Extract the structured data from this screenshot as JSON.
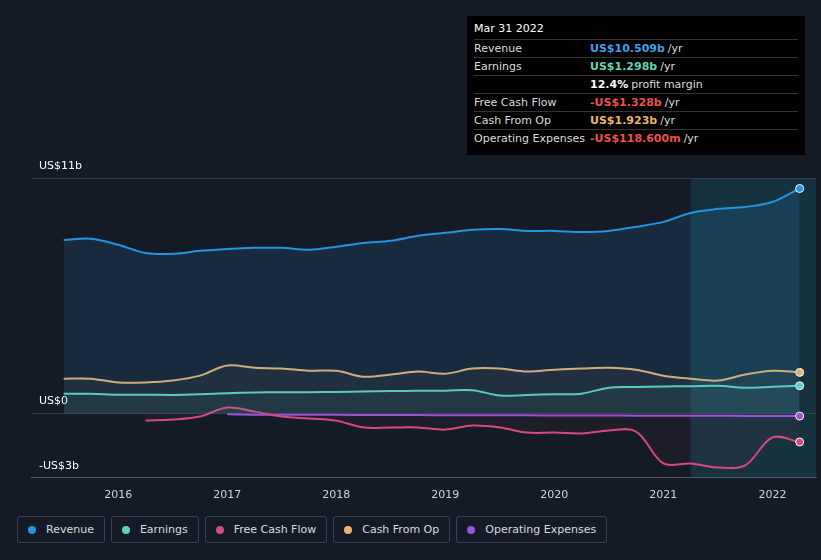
{
  "chart_data": {
    "type": "line",
    "x": [
      2015.5,
      2015.75,
      2016,
      2016.25,
      2016.5,
      2016.75,
      2017,
      2017.25,
      2017.5,
      2017.75,
      2018,
      2018.25,
      2018.5,
      2018.75,
      2019,
      2019.25,
      2019.5,
      2019.75,
      2020,
      2020.25,
      2020.5,
      2020.75,
      2021,
      2021.25,
      2021.5,
      2021.75,
      2022,
      2022.25
    ],
    "xlim": [
      2015.2,
      2022.4
    ],
    "xticks": [
      2016,
      2017,
      2018,
      2019,
      2020,
      2021,
      2022
    ],
    "ylim": [
      -3,
      11
    ],
    "yticks": [
      {
        "value": -3,
        "label": "-US$3b"
      },
      {
        "value": 0,
        "label": "US$0"
      },
      {
        "value": 11,
        "label": "US$11b"
      }
    ],
    "grid": true,
    "legend": "bottom",
    "series": [
      {
        "name": "Revenue",
        "color": "#2394df",
        "values": [
          8.11,
          8.16,
          7.88,
          7.5,
          7.46,
          7.6,
          7.69,
          7.74,
          7.74,
          7.65,
          7.79,
          7.97,
          8.07,
          8.3,
          8.44,
          8.58,
          8.62,
          8.53,
          8.53,
          8.48,
          8.53,
          8.72,
          8.95,
          9.37,
          9.56,
          9.65,
          9.88,
          10.509
        ]
      },
      {
        "name": "Earnings",
        "color": "#5fd5b6",
        "values": [
          0.93,
          0.92,
          0.88,
          0.88,
          0.87,
          0.9,
          0.95,
          0.98,
          1.0,
          1.0,
          1.01,
          1.03,
          1.05,
          1.06,
          1.07,
          1.09,
          0.84,
          0.87,
          0.9,
          0.93,
          1.21,
          1.24,
          1.26,
          1.28,
          1.3,
          1.21,
          1.25,
          1.298
        ]
      },
      {
        "name": "Free Cash Flow",
        "color": "#d6497f",
        "values": [
          null,
          null,
          null,
          -0.33,
          -0.28,
          -0.14,
          0.28,
          0.09,
          -0.14,
          -0.23,
          -0.33,
          -0.65,
          -0.65,
          -0.65,
          -0.75,
          -0.56,
          -0.65,
          -0.89,
          -0.89,
          -0.93,
          -0.79,
          -0.84,
          -2.33,
          -2.33,
          -2.52,
          -2.42,
          -1.12,
          -1.328
        ]
      },
      {
        "name": "Cash From Op",
        "color": "#e9b46a",
        "values": [
          1.63,
          1.63,
          1.45,
          1.45,
          1.54,
          1.77,
          2.24,
          2.14,
          2.1,
          2.0,
          2.0,
          1.72,
          1.82,
          1.96,
          1.86,
          2.1,
          2.1,
          1.96,
          2.05,
          2.1,
          2.14,
          2.05,
          1.77,
          1.63,
          1.54,
          1.82,
          2.0,
          1.923
        ]
      },
      {
        "name": "Operating Expenses",
        "color": "#9b51e0",
        "values": [
          null,
          null,
          null,
          null,
          null,
          null,
          -0.03,
          -0.05,
          -0.05,
          -0.06,
          -0.06,
          -0.07,
          -0.07,
          -0.07,
          -0.08,
          -0.08,
          -0.08,
          -0.08,
          -0.09,
          -0.09,
          -0.09,
          -0.1,
          -0.1,
          -0.1,
          -0.1,
          -0.11,
          -0.11,
          -0.1186
        ]
      }
    ],
    "annotation": {
      "title": "Mar 31 2022",
      "rows": [
        {
          "label": "Revenue",
          "value": "US$10.509b",
          "unit": "/yr",
          "color": "#3d9fe8"
        },
        {
          "label": "Earnings",
          "value": "US$1.298b",
          "unit": "/yr",
          "color": "#5fd5b6"
        },
        {
          "value": "12.4%",
          "unit": "profit margin",
          "color": "#ffffff"
        },
        {
          "label": "Free Cash Flow",
          "value": "-US$1.328b",
          "unit": "/yr",
          "color": "#ef4e4e"
        },
        {
          "label": "Cash From Op",
          "value": "US$1.923b",
          "unit": "/yr",
          "color": "#e9b46a"
        },
        {
          "label": "Operating Expenses",
          "value": "-US$118.600m",
          "unit": "/yr",
          "color": "#ef4e4e"
        }
      ]
    }
  }
}
